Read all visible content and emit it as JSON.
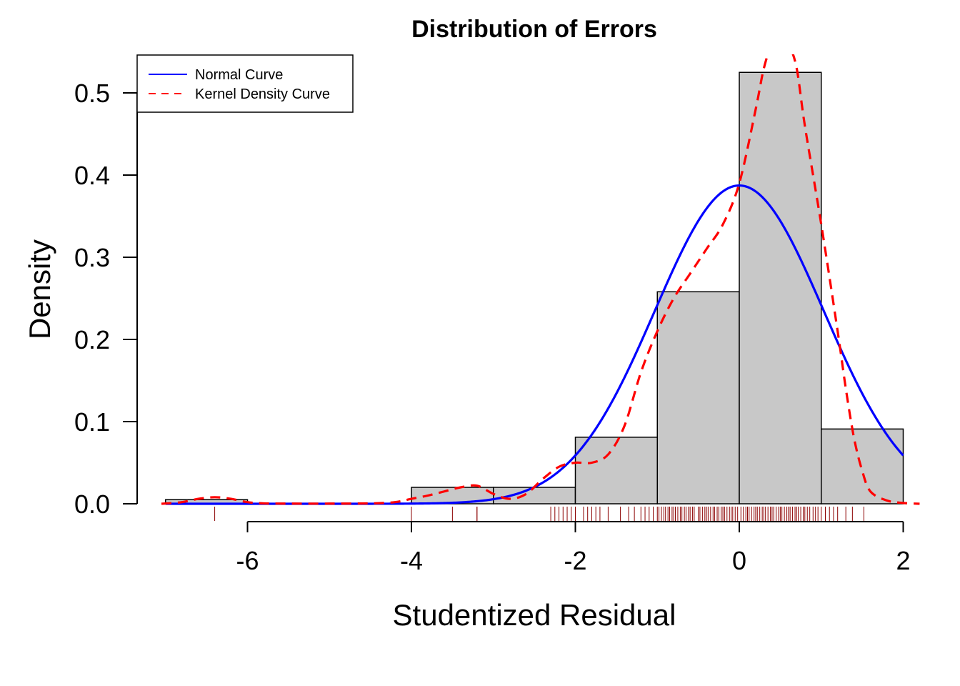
{
  "chart_data": {
    "type": "histogram",
    "title": "Distribution of Errors",
    "xlabel": "Studentized Residual",
    "ylabel": "Density",
    "xlim": [
      -7.1,
      2.25
    ],
    "ylim": [
      0,
      0.545
    ],
    "x_ticks": [
      -6,
      -4,
      -2,
      0,
      2
    ],
    "x_tick_labels": [
      "-6",
      "-4",
      "-2",
      "0",
      "2"
    ],
    "y_ticks": [
      0,
      0.1,
      0.2,
      0.3,
      0.4,
      0.5
    ],
    "y_tick_labels": [
      "0.0",
      "0.1",
      "0.2",
      "0.3",
      "0.4",
      "0.5"
    ],
    "grid": false,
    "legend_position": "top-left",
    "bins": [
      {
        "x0": -7,
        "x1": -6,
        "density": 0.005
      },
      {
        "x0": -6,
        "x1": -5,
        "density": 0.0
      },
      {
        "x0": -5,
        "x1": -4,
        "density": 0.0
      },
      {
        "x0": -4,
        "x1": -3,
        "density": 0.02
      },
      {
        "x0": -3,
        "x1": -2,
        "density": 0.02
      },
      {
        "x0": -2,
        "x1": -1,
        "density": 0.081
      },
      {
        "x0": -1,
        "x1": 0,
        "density": 0.258
      },
      {
        "x0": 0,
        "x1": 1,
        "density": 0.525
      },
      {
        "x0": 1,
        "x1": 2,
        "density": 0.091
      }
    ],
    "bin_fill_color": "#c8c8c8",
    "series": [
      {
        "name": "Normal Curve",
        "style": "solid",
        "color": "#0000ff",
        "mean": 0,
        "sd": 1.03,
        "x_range": [
          -7,
          2
        ]
      },
      {
        "name": "Kernel Density Curve",
        "style": "dashed",
        "color": "#ff0000",
        "x": [
          -7.05,
          -6.8,
          -6.6,
          -6.4,
          -6.2,
          -6.0,
          -5.8,
          -5.5,
          -5.0,
          -4.5,
          -4.2,
          -4.0,
          -3.8,
          -3.6,
          -3.4,
          -3.2,
          -3.0,
          -2.8,
          -2.6,
          -2.4,
          -2.2,
          -2.0,
          -1.8,
          -1.6,
          -1.4,
          -1.2,
          -1.0,
          -0.8,
          -0.6,
          -0.4,
          -0.2,
          0.0,
          0.2,
          0.3,
          0.4,
          0.5,
          0.6,
          0.7,
          0.8,
          1.0,
          1.2,
          1.3,
          1.4,
          1.5,
          1.6,
          1.8,
          2.0,
          2.2
        ],
        "y": [
          0.0,
          0.002,
          0.006,
          0.008,
          0.006,
          0.002,
          0.0005,
          0.0002,
          0.0002,
          0.0005,
          0.002,
          0.006,
          0.01,
          0.015,
          0.02,
          0.022,
          0.012,
          0.006,
          0.012,
          0.03,
          0.045,
          0.05,
          0.05,
          0.06,
          0.095,
          0.16,
          0.21,
          0.25,
          0.28,
          0.31,
          0.34,
          0.39,
          0.48,
          0.53,
          0.56,
          0.575,
          0.56,
          0.53,
          0.46,
          0.34,
          0.21,
          0.14,
          0.08,
          0.04,
          0.015,
          0.004,
          0.001,
          0.0
        ]
      }
    ],
    "rug_color": "#8b0000",
    "rug": [
      -6.4,
      -4.0,
      -3.5,
      -3.2,
      -3.2,
      -2.3,
      -2.25,
      -2.2,
      -2.15,
      -2.1,
      -2.05,
      -2.0,
      -1.9,
      -1.85,
      -1.8,
      -1.75,
      -1.7,
      -1.6,
      -1.45,
      -1.35,
      -1.28,
      -1.2,
      -1.15,
      -1.1,
      -1.05,
      -1.0,
      -0.98,
      -0.95,
      -0.92,
      -0.9,
      -0.87,
      -0.85,
      -0.82,
      -0.8,
      -0.78,
      -0.75,
      -0.72,
      -0.7,
      -0.67,
      -0.65,
      -0.62,
      -0.6,
      -0.57,
      -0.55,
      -0.5,
      -0.48,
      -0.45,
      -0.42,
      -0.4,
      -0.38,
      -0.35,
      -0.32,
      -0.3,
      -0.27,
      -0.25,
      -0.22,
      -0.2,
      -0.18,
      -0.15,
      -0.12,
      -0.1,
      -0.08,
      -0.05,
      -0.02,
      0.02,
      0.05,
      0.08,
      0.1,
      0.12,
      0.15,
      0.18,
      0.2,
      0.22,
      0.25,
      0.28,
      0.3,
      0.32,
      0.35,
      0.38,
      0.4,
      0.42,
      0.45,
      0.48,
      0.5,
      0.52,
      0.55,
      0.58,
      0.6,
      0.62,
      0.65,
      0.68,
      0.7,
      0.72,
      0.75,
      0.78,
      0.8,
      0.83,
      0.86,
      0.9,
      0.93,
      0.96,
      1.0,
      1.05,
      1.1,
      1.15,
      1.2,
      1.3,
      1.38,
      1.52
    ]
  }
}
